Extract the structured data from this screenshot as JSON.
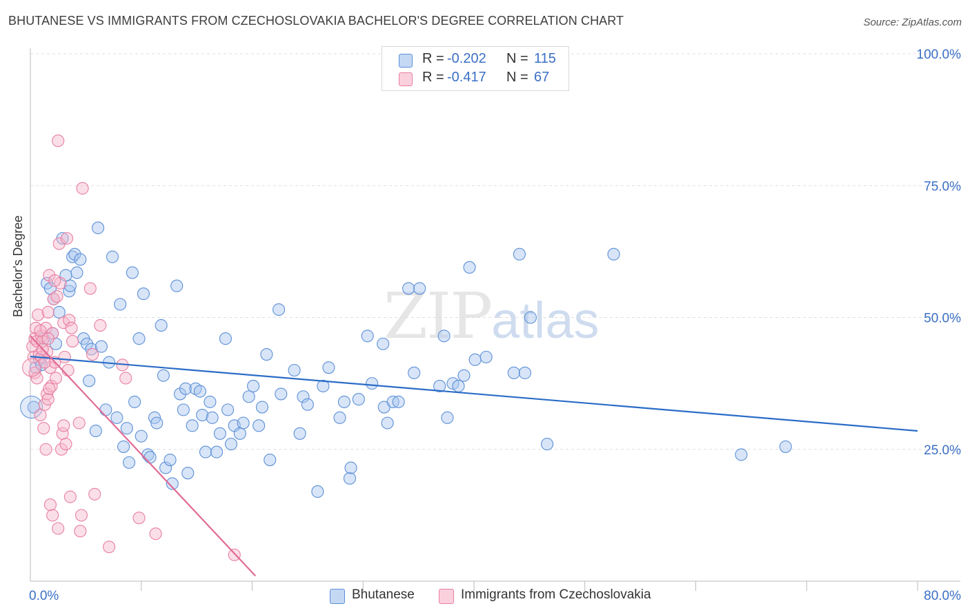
{
  "title": "BHUTANESE VS IMMIGRANTS FROM CZECHOSLOVAKIA BACHELOR'S DEGREE CORRELATION CHART",
  "source": "Source: ZipAtlas.com",
  "watermark": {
    "zip": "ZIP",
    "atlas": "atlas"
  },
  "colors": {
    "blue_fill": "#a8c6ef",
    "blue_stroke": "#5b8fd6",
    "blue_line": "#2a6cc7",
    "pink_fill": "#f7b8cb",
    "pink_stroke": "#e77fa0",
    "pink_line": "#e06a94",
    "axis_text": "#3a6fc4",
    "grid": "#dddddd"
  },
  "legend_top": [
    {
      "r_label": "R =",
      "r_value": "-0.202",
      "n_label": "N =",
      "n_value": "115"
    },
    {
      "r_label": "R =",
      "r_value": "-0.417",
      "n_label": "N =",
      "n_value": "67"
    }
  ],
  "legend_bottom": [
    "Bhutanese",
    "Immigrants from Czechoslovakia"
  ],
  "chart_data": {
    "type": "scatter",
    "title": "BHUTANESE VS IMMIGRANTS FROM CZECHOSLOVAKIA BACHELOR'S DEGREE CORRELATION CHART",
    "xlabel": "",
    "ylabel": "Bachelor's Degree",
    "xlim": [
      0,
      80
    ],
    "ylim": [
      0,
      100
    ],
    "x_tick_labels": [
      {
        "value": 0,
        "label": "0.0%"
      },
      {
        "value": 80,
        "label": "80.0%"
      }
    ],
    "y_tick_labels": [
      {
        "value": 25,
        "label": "25.0%"
      },
      {
        "value": 50,
        "label": "50.0%"
      },
      {
        "value": 75,
        "label": "75.0%"
      },
      {
        "value": 100,
        "label": "100.0%"
      }
    ],
    "grid": "horizontal dashed",
    "legend_placement": "top-center and bottom",
    "series": [
      {
        "name": "Bhutanese",
        "color": "#a8c6ef",
        "trend": {
          "x": [
            0,
            80
          ],
          "y": [
            42.6,
            28.5
          ]
        },
        "points": [
          [
            0.3,
            33.0
          ],
          [
            0.5,
            40.5
          ],
          [
            0.8,
            42.0
          ],
          [
            1.0,
            41.0
          ],
          [
            1.2,
            46.0
          ],
          [
            1.5,
            56.5
          ],
          [
            1.8,
            55.5
          ],
          [
            2.0,
            47.0
          ],
          [
            2.1,
            53.5
          ],
          [
            2.3,
            45.0
          ],
          [
            2.6,
            51.0
          ],
          [
            2.9,
            65.0
          ],
          [
            3.2,
            58.0
          ],
          [
            3.5,
            55.0
          ],
          [
            3.6,
            56.0
          ],
          [
            3.8,
            61.5
          ],
          [
            4.0,
            62.0
          ],
          [
            4.2,
            58.5
          ],
          [
            4.5,
            61.0
          ],
          [
            4.8,
            46.0
          ],
          [
            5.1,
            45.0
          ],
          [
            5.3,
            38.0
          ],
          [
            5.5,
            44.0
          ],
          [
            5.9,
            28.5
          ],
          [
            6.1,
            67.0
          ],
          [
            6.4,
            44.5
          ],
          [
            6.8,
            32.5
          ],
          [
            7.1,
            41.5
          ],
          [
            7.4,
            61.5
          ],
          [
            7.8,
            31.0
          ],
          [
            8.1,
            52.5
          ],
          [
            8.4,
            25.5
          ],
          [
            8.7,
            29.0
          ],
          [
            8.9,
            22.5
          ],
          [
            9.2,
            58.5
          ],
          [
            9.4,
            34.0
          ],
          [
            9.8,
            46.0
          ],
          [
            10.0,
            27.5
          ],
          [
            10.2,
            54.5
          ],
          [
            10.6,
            24.0
          ],
          [
            10.8,
            23.5
          ],
          [
            11.2,
            31.0
          ],
          [
            11.4,
            30.0
          ],
          [
            11.8,
            48.5
          ],
          [
            12.0,
            39.0
          ],
          [
            12.2,
            21.5
          ],
          [
            12.6,
            23.0
          ],
          [
            12.8,
            18.5
          ],
          [
            13.2,
            56.0
          ],
          [
            13.5,
            35.5
          ],
          [
            13.8,
            32.5
          ],
          [
            14.0,
            36.5
          ],
          [
            14.2,
            20.5
          ],
          [
            14.6,
            29.5
          ],
          [
            14.9,
            36.5
          ],
          [
            15.3,
            36.0
          ],
          [
            15.5,
            31.5
          ],
          [
            15.8,
            24.5
          ],
          [
            16.2,
            34.0
          ],
          [
            16.4,
            31.0
          ],
          [
            16.8,
            24.5
          ],
          [
            17.1,
            28.0
          ],
          [
            17.6,
            46.0
          ],
          [
            17.8,
            32.5
          ],
          [
            18.1,
            26.0
          ],
          [
            18.4,
            29.5
          ],
          [
            18.9,
            28.0
          ],
          [
            19.2,
            30.0
          ],
          [
            19.7,
            35.0
          ],
          [
            20.1,
            37.0
          ],
          [
            20.6,
            29.5
          ],
          [
            20.9,
            33.0
          ],
          [
            21.3,
            43.0
          ],
          [
            21.6,
            23.0
          ],
          [
            22.4,
            51.5
          ],
          [
            22.6,
            35.5
          ],
          [
            23.8,
            40.0
          ],
          [
            24.3,
            28.0
          ],
          [
            24.6,
            35.0
          ],
          [
            25.0,
            33.5
          ],
          [
            25.9,
            17.0
          ],
          [
            26.4,
            37.0
          ],
          [
            26.9,
            40.5
          ],
          [
            27.9,
            31.0
          ],
          [
            28.3,
            34.0
          ],
          [
            28.8,
            19.5
          ],
          [
            28.9,
            21.5
          ],
          [
            29.6,
            34.5
          ],
          [
            30.4,
            46.5
          ],
          [
            30.8,
            37.5
          ],
          [
            31.8,
            45.0
          ],
          [
            31.9,
            33.0
          ],
          [
            32.2,
            30.0
          ],
          [
            32.7,
            34.0
          ],
          [
            33.2,
            34.0
          ],
          [
            34.1,
            55.5
          ],
          [
            34.6,
            39.5
          ],
          [
            35.1,
            55.5
          ],
          [
            36.9,
            37.0
          ],
          [
            37.3,
            46.5
          ],
          [
            37.6,
            31.0
          ],
          [
            38.1,
            37.5
          ],
          [
            38.6,
            37.0
          ],
          [
            39.1,
            39.0
          ],
          [
            39.6,
            59.5
          ],
          [
            40.1,
            42.0
          ],
          [
            41.1,
            42.5
          ],
          [
            43.6,
            39.5
          ],
          [
            44.1,
            62.0
          ],
          [
            44.6,
            39.5
          ],
          [
            45.1,
            50.0
          ],
          [
            46.6,
            26.0
          ],
          [
            52.6,
            62.0
          ],
          [
            64.1,
            24.0
          ],
          [
            68.1,
            25.5
          ]
        ]
      },
      {
        "name": "Immigrants from Czechoslovakia",
        "color": "#f7b8cb",
        "trend": {
          "x": [
            0,
            20.3
          ],
          "y": [
            46.5,
            1.0
          ]
        },
        "points": [
          [
            0.2,
            44.5
          ],
          [
            0.3,
            42.5
          ],
          [
            0.4,
            46.0
          ],
          [
            0.4,
            39.5
          ],
          [
            0.5,
            48.0
          ],
          [
            0.6,
            38.5
          ],
          [
            0.6,
            45.5
          ],
          [
            0.7,
            50.5
          ],
          [
            0.8,
            43.0
          ],
          [
            0.9,
            31.5
          ],
          [
            1.0,
            46.5
          ],
          [
            1.0,
            42.5
          ],
          [
            1.1,
            45.5
          ],
          [
            1.2,
            29.0
          ],
          [
            1.3,
            33.5
          ],
          [
            1.4,
            48.0
          ],
          [
            1.4,
            25.0
          ],
          [
            1.5,
            35.5
          ],
          [
            1.5,
            43.5
          ],
          [
            1.6,
            51.0
          ],
          [
            1.6,
            34.5
          ],
          [
            1.7,
            58.0
          ],
          [
            1.8,
            14.5
          ],
          [
            1.8,
            40.5
          ],
          [
            1.9,
            37.0
          ],
          [
            2.0,
            47.0
          ],
          [
            2.0,
            12.5
          ],
          [
            2.1,
            53.5
          ],
          [
            2.2,
            41.5
          ],
          [
            2.3,
            38.5
          ],
          [
            2.4,
            54.0
          ],
          [
            2.5,
            83.5
          ],
          [
            2.5,
            10.0
          ],
          [
            2.6,
            64.0
          ],
          [
            2.7,
            56.5
          ],
          [
            2.8,
            25.0
          ],
          [
            2.9,
            28.0
          ],
          [
            3.0,
            49.0
          ],
          [
            3.1,
            42.5
          ],
          [
            3.2,
            26.0
          ],
          [
            3.3,
            65.0
          ],
          [
            3.4,
            40.0
          ],
          [
            3.5,
            49.5
          ],
          [
            3.6,
            16.0
          ],
          [
            3.7,
            48.0
          ],
          [
            3.8,
            45.5
          ],
          [
            4.4,
            30.0
          ],
          [
            4.5,
            9.5
          ],
          [
            4.6,
            12.5
          ],
          [
            4.7,
            74.5
          ],
          [
            5.4,
            55.5
          ],
          [
            5.6,
            43.0
          ],
          [
            5.8,
            16.5
          ],
          [
            6.3,
            48.5
          ],
          [
            7.1,
            6.5
          ],
          [
            8.3,
            41.0
          ],
          [
            8.6,
            38.5
          ],
          [
            9.8,
            12.0
          ],
          [
            11.3,
            9.0
          ],
          [
            18.4,
            5.0
          ],
          [
            1.1,
            44.0
          ],
          [
            1.3,
            41.5
          ],
          [
            0.9,
            47.5
          ],
          [
            1.6,
            46.0
          ],
          [
            2.2,
            57.0
          ],
          [
            3.0,
            29.5
          ],
          [
            1.7,
            36.5
          ]
        ]
      }
    ]
  }
}
